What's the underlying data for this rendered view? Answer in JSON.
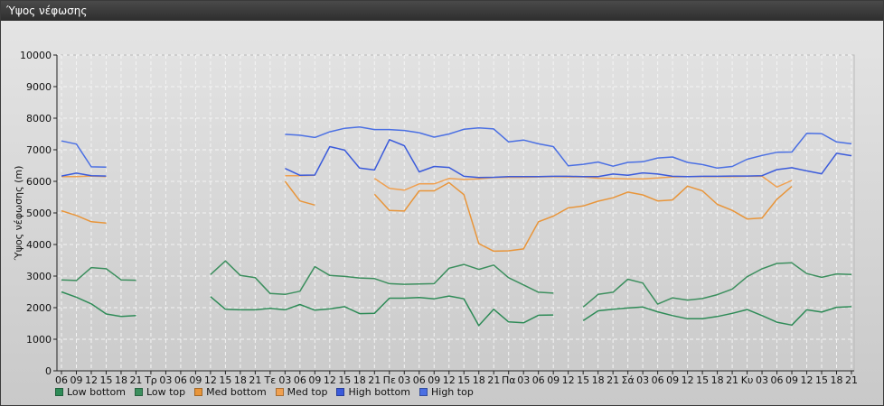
{
  "window": {
    "title": "Ύψος νέφωσης"
  },
  "chart_data": {
    "type": "line",
    "title": "",
    "ylabel": "Ύψος νέφωσης (m)",
    "xlabel": "",
    "ylim": [
      0,
      10000
    ],
    "yticks": [
      0,
      1000,
      2000,
      3000,
      4000,
      5000,
      6000,
      7000,
      8000,
      9000,
      10000
    ],
    "grid": true,
    "legend_position": "bottom-left",
    "categories": [
      "06",
      "09",
      "12",
      "15",
      "18",
      "21",
      "Τρ",
      "03",
      "06",
      "09",
      "12",
      "15",
      "18",
      "21",
      "Τε",
      "03",
      "06",
      "09",
      "12",
      "15",
      "18",
      "21",
      "Πε",
      "03",
      "06",
      "09",
      "12",
      "15",
      "18",
      "21",
      "Πα",
      "03",
      "06",
      "09",
      "12",
      "15",
      "18",
      "21",
      "Σά",
      "03",
      "06",
      "09",
      "12",
      "15",
      "18",
      "21",
      "Κυ",
      "03",
      "06",
      "09",
      "12",
      "15",
      "18",
      "21"
    ],
    "series": [
      {
        "name": "Low bottom",
        "color": "#2e8b57",
        "values": [
          2500,
          2330,
          2120,
          1800,
          1720,
          1750,
          null,
          null,
          null,
          null,
          2350,
          1950,
          1930,
          1930,
          1980,
          1930,
          2100,
          1920,
          1960,
          2030,
          1810,
          1820,
          2300,
          2300,
          2320,
          2280,
          2370,
          2280,
          1430,
          1950,
          1550,
          1520,
          1760,
          1770,
          null,
          1590,
          1900,
          1950,
          1990,
          2020,
          1870,
          1750,
          1650,
          1650,
          1720,
          1820,
          1940,
          1750,
          1540,
          1450,
          1930,
          1860,
          2010,
          2030
        ]
      },
      {
        "name": "Low top",
        "color": "#3c8f5e",
        "values": [
          2880,
          2860,
          3270,
          3230,
          2880,
          2870,
          null,
          null,
          null,
          null,
          3050,
          3480,
          3020,
          2950,
          2450,
          2420,
          2520,
          3300,
          3020,
          2990,
          2940,
          2920,
          2760,
          2740,
          2750,
          2760,
          3250,
          3370,
          3210,
          3350,
          2950,
          2720,
          2490,
          2460,
          null,
          2020,
          2420,
          2490,
          2900,
          2780,
          2110,
          2310,
          2240,
          2290,
          2410,
          2590,
          2980,
          3230,
          3400,
          3420,
          3080,
          2960,
          3070,
          3050
        ]
      },
      {
        "name": "Med bottom",
        "color": "#e8953a",
        "values": [
          5070,
          4920,
          4720,
          4680,
          null,
          null,
          null,
          null,
          null,
          null,
          null,
          null,
          null,
          null,
          null,
          6000,
          5380,
          5250,
          null,
          null,
          null,
          5590,
          5080,
          5060,
          5700,
          5700,
          5960,
          5580,
          4030,
          3790,
          3800,
          3860,
          4720,
          4900,
          5160,
          5220,
          5370,
          5480,
          5660,
          5570,
          5380,
          5410,
          5850,
          5700,
          5270,
          5080,
          4810,
          4840,
          5430,
          5840,
          null,
          null,
          null,
          null
        ]
      },
      {
        "name": "Med top",
        "color": "#f0a050",
        "values": [
          6150,
          6150,
          6170,
          6150,
          null,
          null,
          null,
          null,
          null,
          null,
          null,
          null,
          null,
          null,
          null,
          6180,
          6180,
          6190,
          null,
          null,
          null,
          6090,
          5780,
          5720,
          5920,
          5920,
          6090,
          6060,
          6080,
          6120,
          6130,
          6130,
          6140,
          6150,
          6140,
          6140,
          6100,
          6090,
          6080,
          6080,
          6110,
          6140,
          6150,
          6150,
          6150,
          6150,
          6160,
          6160,
          5820,
          6030,
          null,
          null,
          null,
          null
        ]
      },
      {
        "name": "High bottom",
        "color": "#3b5bdb",
        "values": [
          6170,
          6260,
          6180,
          6170,
          null,
          null,
          null,
          null,
          null,
          null,
          null,
          null,
          null,
          null,
          null,
          6410,
          6190,
          6200,
          7100,
          6990,
          6420,
          6360,
          7320,
          7130,
          6300,
          6470,
          6440,
          6160,
          6120,
          6130,
          6150,
          6150,
          6150,
          6160,
          6160,
          6150,
          6150,
          6230,
          6190,
          6270,
          6230,
          6160,
          6150,
          6160,
          6160,
          6170,
          6170,
          6180,
          6370,
          6430,
          6330,
          6240,
          6890,
          6810
        ]
      },
      {
        "name": "High top",
        "color": "#4a6fe3",
        "values": [
          7280,
          7180,
          6460,
          6450,
          null,
          null,
          null,
          null,
          null,
          null,
          null,
          null,
          null,
          null,
          null,
          7490,
          7460,
          7390,
          7570,
          7680,
          7720,
          7640,
          7640,
          7610,
          7540,
          7400,
          7500,
          7650,
          7690,
          7660,
          7250,
          7310,
          7190,
          7100,
          6490,
          6540,
          6610,
          6480,
          6600,
          6620,
          6740,
          6770,
          6600,
          6530,
          6420,
          6470,
          6700,
          6820,
          6920,
          6930,
          7520,
          7510,
          7250,
          7190
        ]
      }
    ]
  }
}
